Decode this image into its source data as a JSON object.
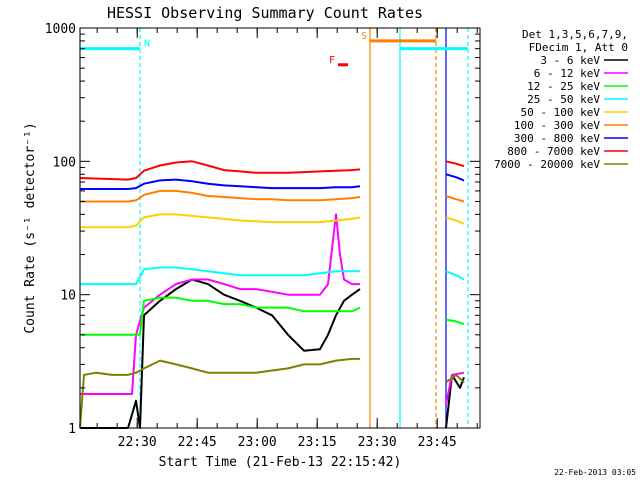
{
  "chart_data": {
    "type": "line",
    "title": "HESSI Observing Summary Count Rates",
    "xlabel": "Start Time (21-Feb-13 22:15:42)",
    "ylabel": "Count Rate (s⁻¹ detector⁻¹)",
    "x_scale": "minutes since 22:15:42 UT",
    "xlim": [
      0,
      100
    ],
    "ylim": [
      1,
      1000
    ],
    "y_scale": "log",
    "x_ticks": [
      {
        "value": 14.3,
        "label": "22:30"
      },
      {
        "value": 29.3,
        "label": "22:45"
      },
      {
        "value": 44.3,
        "label": "23:00"
      },
      {
        "value": 59.3,
        "label": "23:15"
      },
      {
        "value": 74.3,
        "label": "23:30"
      },
      {
        "value": 89.3,
        "label": "23:45"
      }
    ],
    "y_ticks": [
      {
        "value": 1,
        "label": "1"
      },
      {
        "value": 10,
        "label": "10"
      },
      {
        "value": 100,
        "label": "100"
      },
      {
        "value": 1000,
        "label": "1000"
      }
    ],
    "legend": {
      "header": [
        "Det 1,3,5,6,7,9,",
        "FDecim 1, Att 0"
      ],
      "position": "right"
    },
    "series": [
      {
        "name": "3 - 6 keV",
        "color": "#000000",
        "segments": [
          [
            [
              0,
              1.0
            ],
            [
              12,
              1.0
            ],
            [
              14,
              1.6
            ],
            [
              15,
              1.0
            ],
            [
              16,
              7
            ],
            [
              20,
              9
            ],
            [
              24,
              11
            ],
            [
              28,
              13
            ],
            [
              32,
              12
            ],
            [
              36,
              10
            ],
            [
              40,
              9
            ],
            [
              44,
              8
            ],
            [
              48,
              7
            ],
            [
              52,
              5
            ],
            [
              56,
              3.8
            ],
            [
              60,
              3.9
            ],
            [
              62,
              5
            ],
            [
              64,
              7
            ],
            [
              66,
              9
            ],
            [
              68,
              10
            ],
            [
              70,
              11
            ]
          ],
          [
            [
              91.5,
              1.0
            ],
            [
              93,
              2.5
            ],
            [
              95,
              2.0
            ],
            [
              96,
              2.4
            ]
          ]
        ]
      },
      {
        "name": "6 - 12 keV",
        "color": "#ff00ff",
        "segments": [
          [
            [
              0,
              1.8
            ],
            [
              12,
              1.8
            ],
            [
              13,
              1.8
            ],
            [
              14,
              5
            ],
            [
              16,
              8
            ],
            [
              20,
              10
            ],
            [
              24,
              12
            ],
            [
              28,
              13
            ],
            [
              32,
              13
            ],
            [
              36,
              12
            ],
            [
              40,
              11
            ],
            [
              44,
              11
            ],
            [
              48,
              10.5
            ],
            [
              52,
              10
            ],
            [
              56,
              10
            ],
            [
              60,
              10
            ],
            [
              62,
              12
            ],
            [
              63,
              22
            ],
            [
              64,
              40
            ],
            [
              65,
              20
            ],
            [
              66,
              13
            ],
            [
              68,
              12
            ],
            [
              70,
              12
            ]
          ],
          [
            [
              91.5,
              1.5
            ],
            [
              93,
              2.5
            ],
            [
              96,
              2.6
            ]
          ]
        ]
      },
      {
        "name": "12 - 25 keV",
        "color": "#00ff00",
        "segments": [
          [
            [
              0,
              5
            ],
            [
              14,
              5
            ],
            [
              15,
              5
            ],
            [
              16,
              9
            ],
            [
              20,
              9.5
            ],
            [
              24,
              9.5
            ],
            [
              28,
              9
            ],
            [
              32,
              9
            ],
            [
              36,
              8.5
            ],
            [
              40,
              8.5
            ],
            [
              44,
              8
            ],
            [
              48,
              8
            ],
            [
              52,
              8
            ],
            [
              56,
              7.5
            ],
            [
              60,
              7.5
            ],
            [
              64,
              7.5
            ],
            [
              68,
              7.5
            ],
            [
              70,
              8
            ]
          ],
          [
            [
              91.5,
              6.5
            ],
            [
              94,
              6.3
            ],
            [
              96,
              6.0
            ]
          ]
        ]
      },
      {
        "name": "25 - 50 keV",
        "color": "#00ffff",
        "segments": [
          [
            [
              0,
              12
            ],
            [
              12,
              12
            ],
            [
              14,
              12
            ],
            [
              16,
              15.5
            ],
            [
              20,
              16
            ],
            [
              24,
              16
            ],
            [
              28,
              15.5
            ],
            [
              32,
              15
            ],
            [
              36,
              14.5
            ],
            [
              40,
              14
            ],
            [
              44,
              14
            ],
            [
              48,
              14
            ],
            [
              52,
              14
            ],
            [
              56,
              14
            ],
            [
              60,
              14.5
            ],
            [
              64,
              15
            ],
            [
              68,
              15
            ],
            [
              70,
              15
            ]
          ],
          [
            [
              91.5,
              15
            ],
            [
              94,
              14
            ],
            [
              96,
              13
            ]
          ]
        ]
      },
      {
        "name": "50 - 100 keV",
        "color": "#ffd000",
        "segments": [
          [
            [
              0,
              32
            ],
            [
              12,
              32
            ],
            [
              14,
              33
            ],
            [
              16,
              38
            ],
            [
              20,
              40
            ],
            [
              24,
              40
            ],
            [
              28,
              39
            ],
            [
              32,
              38
            ],
            [
              36,
              37
            ],
            [
              40,
              36
            ],
            [
              44,
              35.5
            ],
            [
              48,
              35
            ],
            [
              52,
              35
            ],
            [
              56,
              35
            ],
            [
              60,
              35
            ],
            [
              64,
              36
            ],
            [
              68,
              37
            ],
            [
              70,
              38
            ]
          ],
          [
            [
              91.5,
              38
            ],
            [
              94,
              36
            ],
            [
              96,
              34
            ]
          ]
        ]
      },
      {
        "name": "100 - 300 keV",
        "color": "#ff8000",
        "segments": [
          [
            [
              0,
              50
            ],
            [
              12,
              50
            ],
            [
              14,
              51
            ],
            [
              16,
              56
            ],
            [
              20,
              60
            ],
            [
              24,
              60
            ],
            [
              28,
              58
            ],
            [
              32,
              55
            ],
            [
              36,
              54
            ],
            [
              40,
              53
            ],
            [
              44,
              52
            ],
            [
              48,
              52
            ],
            [
              52,
              51
            ],
            [
              56,
              51
            ],
            [
              60,
              51
            ],
            [
              64,
              52
            ],
            [
              68,
              53
            ],
            [
              70,
              54
            ]
          ],
          [
            [
              91.5,
              55
            ],
            [
              94,
              52
            ],
            [
              96,
              50
            ]
          ]
        ]
      },
      {
        "name": "300 - 800 keV",
        "color": "#0000ff",
        "segments": [
          [
            [
              0,
              62
            ],
            [
              12,
              62
            ],
            [
              14,
              63
            ],
            [
              16,
              68
            ],
            [
              20,
              72
            ],
            [
              24,
              73
            ],
            [
              28,
              71
            ],
            [
              32,
              68
            ],
            [
              36,
              66
            ],
            [
              40,
              65
            ],
            [
              44,
              64
            ],
            [
              48,
              63
            ],
            [
              52,
              63
            ],
            [
              56,
              63
            ],
            [
              60,
              63
            ],
            [
              64,
              64
            ],
            [
              68,
              64
            ],
            [
              70,
              65
            ]
          ],
          [
            [
              91.5,
              80
            ],
            [
              94,
              76
            ],
            [
              96,
              72
            ]
          ]
        ]
      },
      {
        "name": "800 - 7000 keV",
        "color": "#ff0000",
        "segments": [
          [
            [
              0,
              75
            ],
            [
              12,
              73
            ],
            [
              14,
              75
            ],
            [
              16,
              85
            ],
            [
              20,
              93
            ],
            [
              24,
              98
            ],
            [
              28,
              100
            ],
            [
              32,
              93
            ],
            [
              36,
              86
            ],
            [
              40,
              84
            ],
            [
              44,
              82
            ],
            [
              48,
              82
            ],
            [
              52,
              82
            ],
            [
              56,
              83
            ],
            [
              60,
              84
            ],
            [
              64,
              85
            ],
            [
              68,
              86
            ],
            [
              70,
              87
            ]
          ],
          [
            [
              91.5,
              100
            ],
            [
              94,
              96
            ],
            [
              96,
              92
            ]
          ]
        ]
      },
      {
        "name": "7000 - 20000 keV",
        "color": "#808000",
        "segments": [
          [
            [
              0,
              1.0
            ],
            [
              1,
              2.5
            ],
            [
              4,
              2.6
            ],
            [
              8,
              2.5
            ],
            [
              12,
              2.5
            ],
            [
              14,
              2.6
            ],
            [
              16,
              2.8
            ],
            [
              20,
              3.2
            ],
            [
              24,
              3.0
            ],
            [
              28,
              2.8
            ],
            [
              32,
              2.6
            ],
            [
              36,
              2.6
            ],
            [
              40,
              2.6
            ],
            [
              44,
              2.6
            ],
            [
              48,
              2.7
            ],
            [
              52,
              2.8
            ],
            [
              56,
              3.0
            ],
            [
              60,
              3.0
            ],
            [
              64,
              3.2
            ],
            [
              68,
              3.3
            ],
            [
              70,
              3.3
            ]
          ],
          [
            [
              91.5,
              2.2
            ],
            [
              94,
              2.5
            ],
            [
              96,
              2.2
            ]
          ]
        ]
      }
    ],
    "flags": [
      {
        "label": "N",
        "color": "#00ffff",
        "level": 700,
        "x_start": 0,
        "x_end": 15,
        "label_at": "end"
      },
      {
        "label": "S",
        "color": "#ff8000",
        "level": 800,
        "x_start": 72.5,
        "x_end": 89,
        "label_at": "start"
      },
      {
        "label": "",
        "color": "#00ffff",
        "level": 700,
        "x_start": 80,
        "x_end": 97
      },
      {
        "label": "F",
        "color": "#ff0000",
        "level": 530,
        "x_start": 64.5,
        "x_end": 67,
        "label_at": "start"
      }
    ],
    "markers": [
      {
        "x": 0,
        "color": "#00ffff",
        "style": "solid"
      },
      {
        "x": 15,
        "color": "#00ffff",
        "style": "dashed"
      },
      {
        "x": 72.5,
        "color": "#ff8000",
        "style": "solid"
      },
      {
        "x": 80,
        "color": "#00ffff",
        "style": "solid"
      },
      {
        "x": 89,
        "color": "#ff8000",
        "style": "dashed"
      },
      {
        "x": 91.5,
        "color": "#0000ff",
        "style": "solid"
      },
      {
        "x": 97,
        "color": "#00ffff",
        "style": "dashed"
      }
    ]
  },
  "footer": {
    "date_stamp": "22-Feb-2013 03:05"
  }
}
